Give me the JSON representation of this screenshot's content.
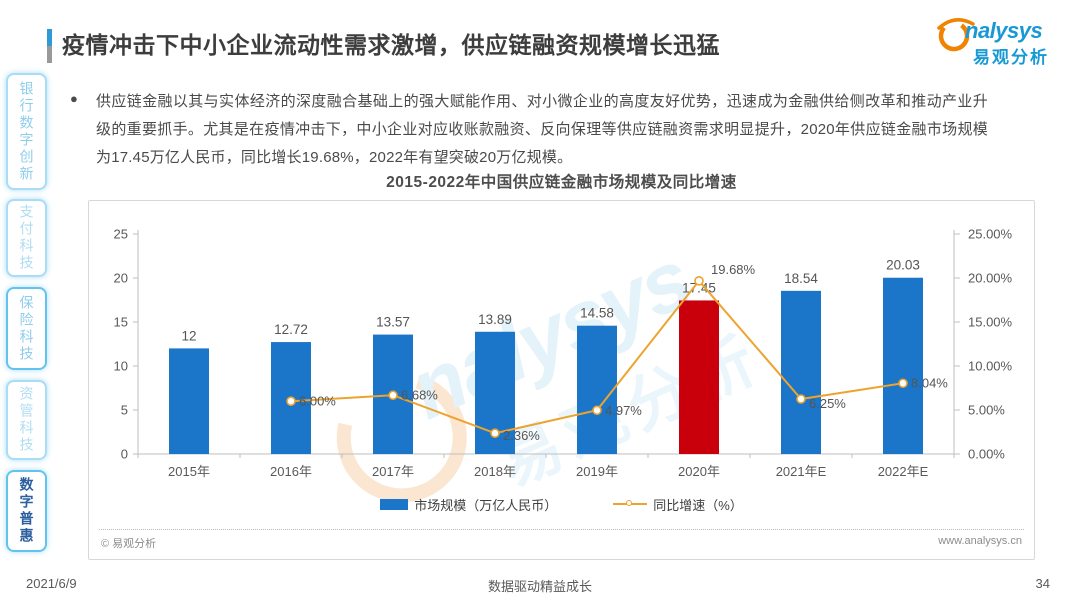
{
  "header": {
    "title": "疫情冲击下中小企业流动性需求激增，供应链融资规模增长迅猛",
    "logo": {
      "brand": "nalysys",
      "brand_cn": "易观分析"
    }
  },
  "sidebar": {
    "items": [
      {
        "label": "银行数字创新",
        "active": false
      },
      {
        "label": "支付科技",
        "active": false
      },
      {
        "label": "保险科技",
        "active": false
      },
      {
        "label": "资管科技",
        "active": false
      },
      {
        "label": "数字普惠",
        "active": true
      }
    ]
  },
  "main": {
    "bullet_text": "供应链金融以其与实体经济的深度融合基础上的强大赋能作用、对小微企业的高度友好优势，迅速成为金融供给侧改革和推动产业升级的重要抓手。尤其是在疫情冲击下，中小企业对应收账款融资、反向保理等供应链融资需求明显提升，2020年供应链金融市场规模为17.45万亿人民币，同比增长19.68%，2022年有望突破20万亿规模。",
    "chart_title": "2015-2022年中国供应链金融市场规模及同比增速",
    "card_footer": {
      "copyright": "© 易观分析",
      "website": "www.analysys.cn"
    }
  },
  "watermark": {
    "brand": "nalysys",
    "brand_cn": "易观分析"
  },
  "chart_data": {
    "type": "bar",
    "subtype": "bar-line-combo",
    "title": "2015-2022年中国供应链金融市场规模及同比增速",
    "categories": [
      "2015年",
      "2016年",
      "2017年",
      "2018年",
      "2019年",
      "2020年",
      "2021年E",
      "2022年E"
    ],
    "series": [
      {
        "name": "市场规模（万亿人民币）",
        "type": "bar",
        "axis": "left",
        "values": [
          12,
          12.72,
          13.57,
          13.89,
          14.58,
          17.45,
          18.54,
          20.03
        ],
        "labels": [
          "12",
          "12.72",
          "13.57",
          "13.89",
          "14.58",
          "17.45",
          "18.54",
          "20.03"
        ]
      },
      {
        "name": "同比增速（%）",
        "type": "line",
        "axis": "right",
        "values": [
          null,
          6.0,
          6.68,
          2.36,
          4.97,
          19.68,
          6.25,
          8.04
        ],
        "labels": [
          null,
          "6.00%",
          "6.68%",
          "2.36%",
          "4.97%",
          "19.68%",
          "6.25%",
          "8.04%"
        ]
      }
    ],
    "highlight_index": 5,
    "left_axis": {
      "min": 0,
      "max": 25,
      "step": 5,
      "ticks": [
        "25",
        "20",
        "15",
        "10",
        "5",
        "0"
      ]
    },
    "right_axis": {
      "min": 0,
      "max": 25,
      "step": 5,
      "ticks": [
        "25.00%",
        "20.00%",
        "15.00%",
        "10.00%",
        "5.00%",
        "0.00%"
      ]
    },
    "legend_position": "bottom",
    "grid": false,
    "colors": {
      "bar": "#1b75c8",
      "bar_highlight": "#c9000c",
      "line": "#eda32e",
      "axis": "#bfbfbf",
      "tick_text": "#595959"
    }
  },
  "page": {
    "date": "2021/6/9",
    "footer_slogan": "数据驱动精益成长",
    "page_number": "34"
  }
}
